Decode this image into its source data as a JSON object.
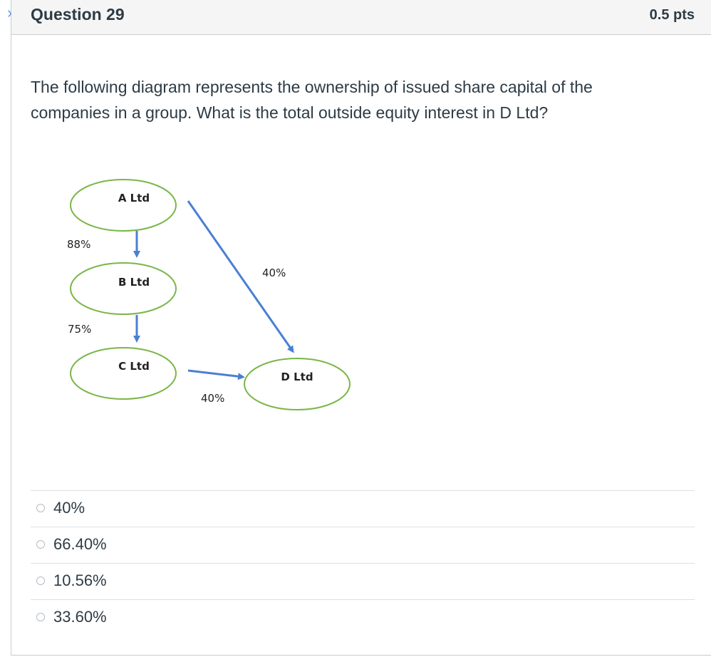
{
  "question": {
    "title": "Question 29",
    "points": "0.5 pts",
    "text": "The following diagram represents the ownership of issued share capital of the companies in a group. What is the total outside equity interest in D Ltd?"
  },
  "diagram": {
    "nodes": {
      "a": "A Ltd",
      "b": "B Ltd",
      "c": "C Ltd",
      "d": "D Ltd"
    },
    "edges": {
      "a_b": "88%",
      "b_c": "75%",
      "a_d": "40%",
      "c_d": "40%"
    },
    "colors": {
      "ellipse_stroke": "#7ab648",
      "arrow": "#4a7fd4"
    }
  },
  "answers": [
    {
      "label": "40%"
    },
    {
      "label": "66.40%"
    },
    {
      "label": "10.56%"
    },
    {
      "label": "33.60%"
    }
  ]
}
